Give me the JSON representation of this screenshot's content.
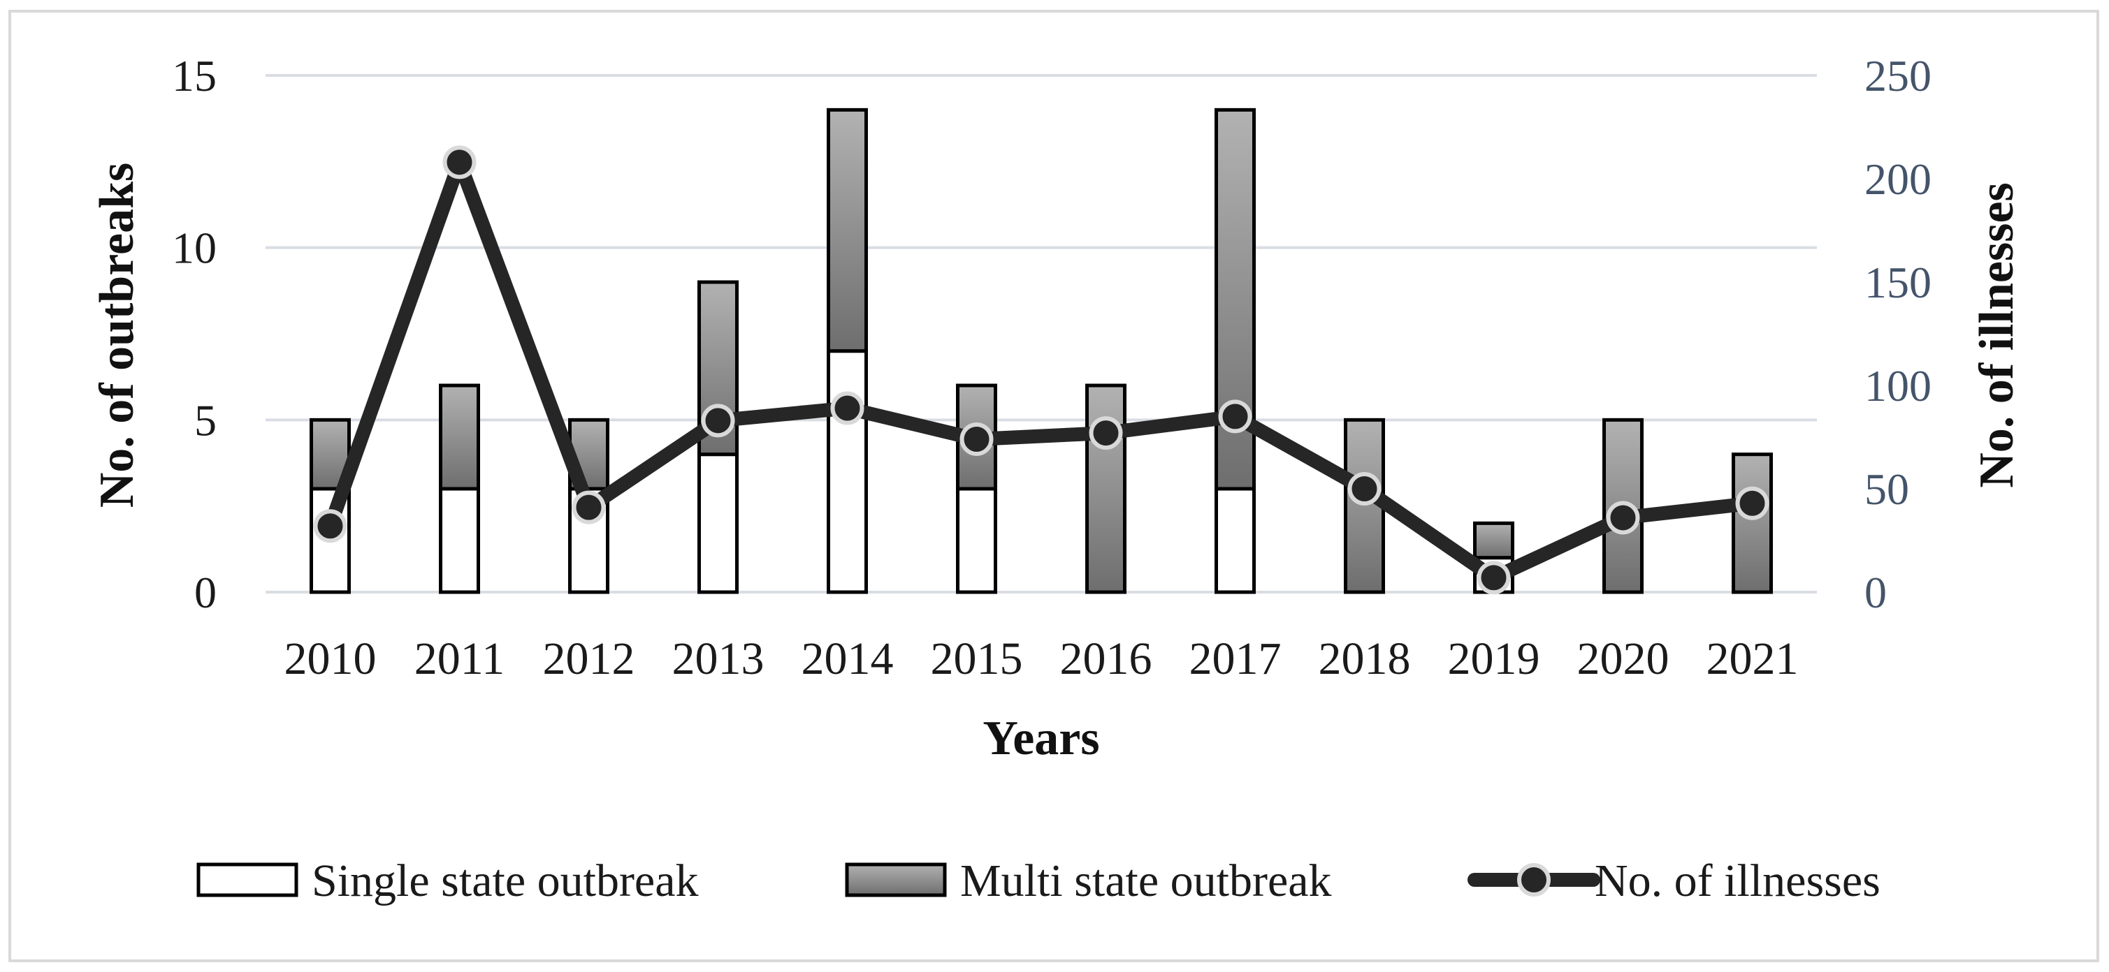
{
  "chart_data": {
    "type": "bar",
    "stacked": true,
    "categories": [
      "2010",
      "2011",
      "2012",
      "2013",
      "2014",
      "2015",
      "2016",
      "2017",
      "2018",
      "2019",
      "2020",
      "2021"
    ],
    "series": [
      {
        "name": "Single state outbreak",
        "axis": "left",
        "values": [
          3,
          3,
          3,
          4,
          7,
          3,
          0,
          3,
          0,
          1,
          0,
          0
        ]
      },
      {
        "name": "Multi state outbreak",
        "axis": "left",
        "values": [
          2,
          3,
          2,
          5,
          7,
          3,
          6,
          11,
          5,
          1,
          5,
          4
        ]
      },
      {
        "name": "No. of illnesses",
        "axis": "right",
        "kind": "line",
        "values": [
          32,
          208,
          41,
          83,
          89,
          74,
          77,
          85,
          50,
          7,
          36,
          43
        ]
      }
    ],
    "xlabel": "Years",
    "ylabel": "No. of outbreaks",
    "y2label": "No. of illnesses",
    "ylim": [
      0,
      15
    ],
    "yticks": [
      "0",
      "5",
      "10",
      "15"
    ],
    "y2lim": [
      0,
      250
    ],
    "y2ticks": [
      "0",
      "50",
      "100",
      "150",
      "200",
      "250"
    ],
    "legend": {
      "position": "bottom",
      "items": [
        "Single state outbreak",
        "Multi state outbreak",
        "No. of illnesses"
      ]
    },
    "colors": {
      "single_fill": "#ffffff",
      "multi_fill_top": "#b2b2b2",
      "multi_fill_bottom": "#6e6e6e",
      "line": "#262626",
      "right_axis_text": "#44546a"
    }
  }
}
